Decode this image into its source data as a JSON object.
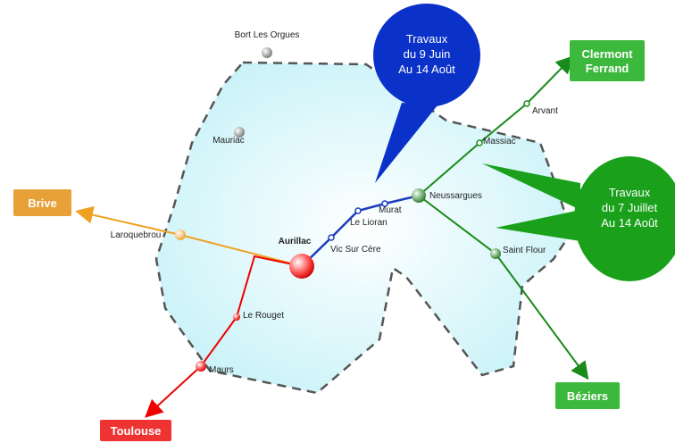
{
  "stations": [
    {
      "label": "Bort Les Orgues"
    },
    {
      "label": "Mauriac"
    },
    {
      "label": "Laroquebrou"
    },
    {
      "label": "Aurillac"
    },
    {
      "label": "Vic Sur Cère"
    },
    {
      "label": "Le Lioran"
    },
    {
      "label": "Murat"
    },
    {
      "label": "Neussargues"
    },
    {
      "label": "Massiac"
    },
    {
      "label": "Arvant"
    },
    {
      "label": "Saint Flour"
    },
    {
      "label": "Le Rouget"
    },
    {
      "label": "Maurs"
    }
  ],
  "destinations": [
    {
      "lines": [
        "Clermont",
        "Ferrand"
      ]
    },
    {
      "lines": [
        "Brive"
      ]
    },
    {
      "lines": [
        "Toulouse"
      ]
    },
    {
      "lines": [
        "Béziers"
      ]
    }
  ],
  "notices": [
    {
      "lines": [
        "Travaux",
        "du 9 Juin",
        "Au 14 Août"
      ]
    },
    {
      "lines": [
        "Travaux",
        "du 7 Juillet",
        "Au 14 Août"
      ]
    }
  ]
}
